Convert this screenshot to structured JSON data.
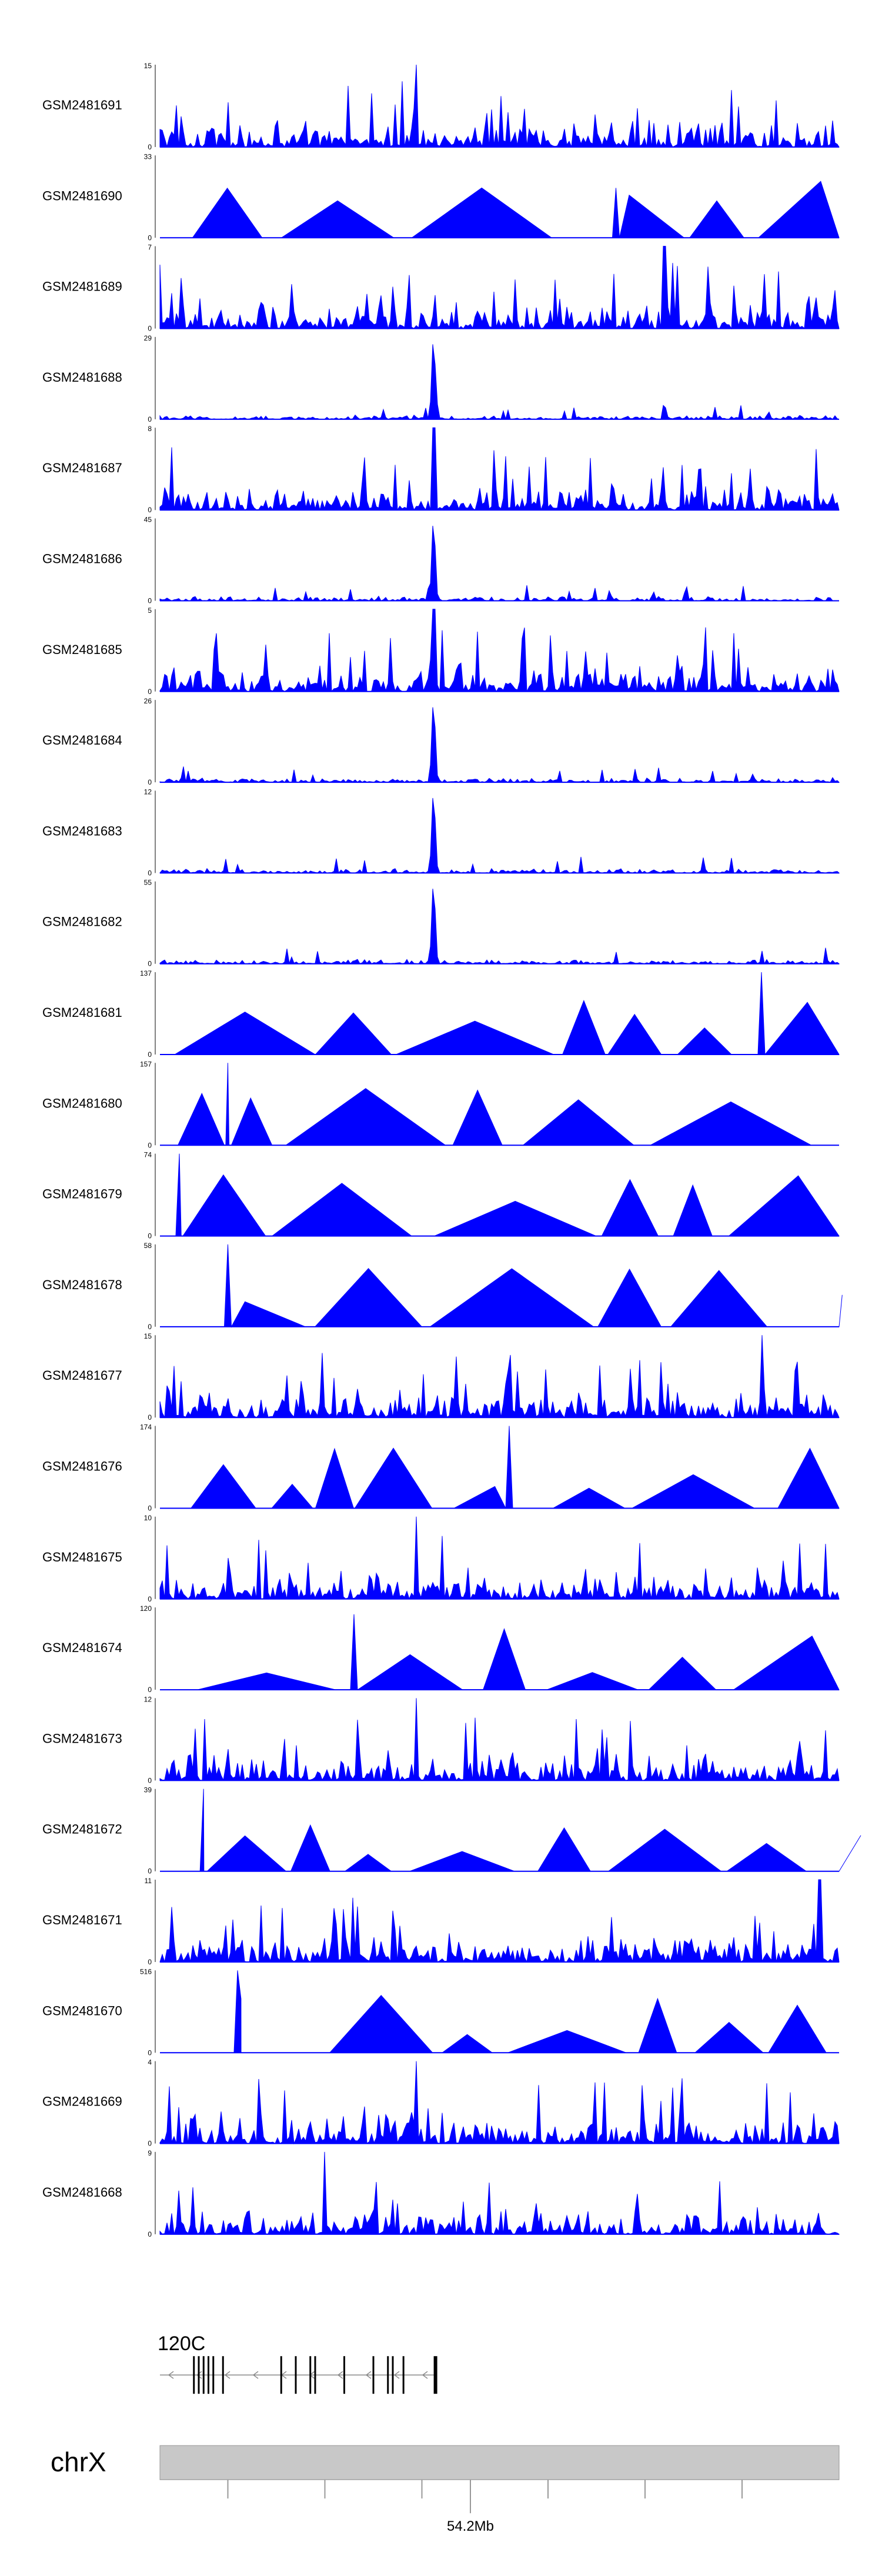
{
  "chart_data": {
    "type": "area",
    "title": "",
    "xlabel": "",
    "ylabel": "",
    "fill_color": "#0000ff",
    "track_color": "#0000ff",
    "xlim_mb": [
      53.88,
      54.58
    ],
    "tracks": [
      {
        "name": "GSM2481691",
        "ymax": 15,
        "ymin": 0,
        "pattern": "dense",
        "spike_mb": 54.144,
        "spike_value": 15
      },
      {
        "name": "GSM2481690",
        "ymax": 33,
        "ymin": 0,
        "pattern": "sparse",
        "spike_mb": 54.35,
        "spike_value": 20
      },
      {
        "name": "GSM2481689",
        "ymax": 7,
        "ymin": 0,
        "pattern": "dense",
        "spike_mb": 54.4,
        "spike_value": 7
      },
      {
        "name": "GSM2481688",
        "ymax": 29,
        "ymin": 0,
        "pattern": "peak",
        "spike_mb": 54.162,
        "spike_value": 29
      },
      {
        "name": "GSM2481687",
        "ymax": 8,
        "ymin": 0,
        "pattern": "dense",
        "spike_mb": 54.162,
        "spike_value": 8
      },
      {
        "name": "GSM2481686",
        "ymax": 45,
        "ymin": 0,
        "pattern": "peak",
        "spike_mb": 54.162,
        "spike_value": 45
      },
      {
        "name": "GSM2481685",
        "ymax": 5,
        "ymin": 0,
        "pattern": "dense",
        "spike_mb": 54.162,
        "spike_value": 5
      },
      {
        "name": "GSM2481684",
        "ymax": 26,
        "ymin": 0,
        "pattern": "peak",
        "spike_mb": 54.162,
        "spike_value": 26
      },
      {
        "name": "GSM2481683",
        "ymax": 12,
        "ymin": 0,
        "pattern": "peak",
        "spike_mb": 54.162,
        "spike_value": 12
      },
      {
        "name": "GSM2481682",
        "ymax": 55,
        "ymin": 0,
        "pattern": "peak",
        "spike_mb": 54.162,
        "spike_value": 55
      },
      {
        "name": "GSM2481681",
        "ymax": 137,
        "ymin": 0,
        "pattern": "sparse",
        "spike_mb": 54.5,
        "spike_value": 137
      },
      {
        "name": "GSM2481680",
        "ymax": 157,
        "ymin": 0,
        "pattern": "sparse",
        "spike_mb": 53.95,
        "spike_value": 157
      },
      {
        "name": "GSM2481679",
        "ymax": 74,
        "ymin": 0,
        "pattern": "sparse",
        "spike_mb": 53.9,
        "spike_value": 74
      },
      {
        "name": "GSM2481678",
        "ymax": 58,
        "ymin": 0,
        "pattern": "sparse",
        "spike_mb": 53.95,
        "spike_value": 58
      },
      {
        "name": "GSM2481677",
        "ymax": 15,
        "ymin": 0,
        "pattern": "dense",
        "spike_mb": 54.5,
        "spike_value": 15
      },
      {
        "name": "GSM2481676",
        "ymax": 174,
        "ymin": 0,
        "pattern": "sparse",
        "spike_mb": 54.24,
        "spike_value": 174
      },
      {
        "name": "GSM2481675",
        "ymax": 10,
        "ymin": 0,
        "pattern": "dense",
        "spike_mb": 54.144,
        "spike_value": 10
      },
      {
        "name": "GSM2481674",
        "ymax": 120,
        "ymin": 0,
        "pattern": "sparse",
        "spike_mb": 54.08,
        "spike_value": 110
      },
      {
        "name": "GSM2481673",
        "ymax": 12,
        "ymin": 0,
        "pattern": "dense",
        "spike_mb": 54.144,
        "spike_value": 12
      },
      {
        "name": "GSM2481672",
        "ymax": 39,
        "ymin": 0,
        "pattern": "sparse",
        "spike_mb": 53.925,
        "spike_value": 39
      },
      {
        "name": "GSM2481671",
        "ymax": 11,
        "ymin": 0,
        "pattern": "dense",
        "spike_mb": 54.56,
        "spike_value": 11
      },
      {
        "name": "GSM2481670",
        "ymax": 516,
        "ymin": 0,
        "pattern": "sparse",
        "spike_mb": 53.96,
        "spike_value": 516
      },
      {
        "name": "GSM2481669",
        "ymax": 4,
        "ymin": 0,
        "pattern": "dense",
        "spike_mb": 54.144,
        "spike_value": 4
      },
      {
        "name": "GSM2481668",
        "ymax": 9,
        "ymin": 0,
        "pattern": "dense",
        "spike_mb": 54.05,
        "spike_value": 9
      }
    ],
    "gene": {
      "name": "120C",
      "strand": "-",
      "start_mb": 53.88,
      "end_mb": 54.165,
      "exons_mb": [
        53.915,
        53.92,
        53.925,
        53.93,
        53.935,
        53.945,
        54.005,
        54.02,
        54.035,
        54.04,
        54.07,
        54.1,
        54.115,
        54.12,
        54.131,
        54.164
      ]
    },
    "chromosome": {
      "name": "chrX",
      "tick_positions_mb": [
        53.95,
        54.05,
        54.15,
        54.28,
        54.38,
        54.48
      ],
      "label_tick_mb": 54.2,
      "label": "54.2Mb"
    }
  }
}
